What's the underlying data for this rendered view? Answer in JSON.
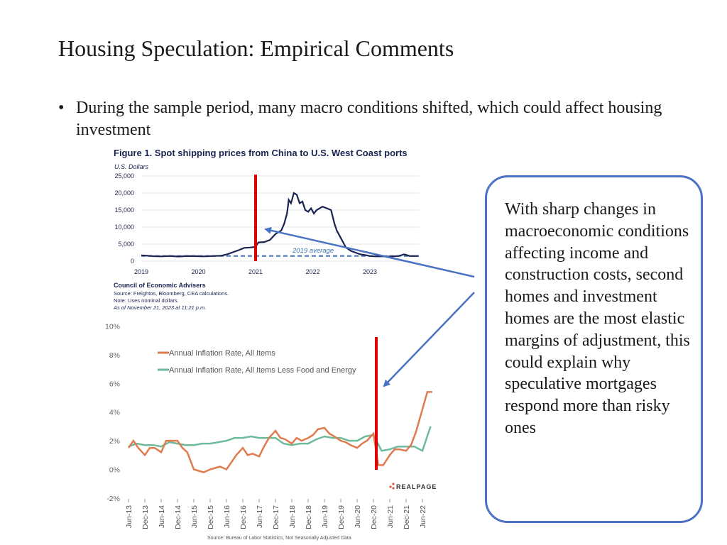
{
  "slide": {
    "title": "Housing Speculation: Empirical Comments",
    "bullet": "During the sample period, many macro conditions shifted, which could affect housing investment"
  },
  "callout": {
    "text": "With sharp changes in macroeconomic conditions affecting income and construction costs, second homes and investment homes are the most elastic margins of adjustment, this could explain why speculative mortgages respond more than risky ones"
  },
  "colors": {
    "shipping_line": "#1b2350",
    "average_line": "#3d73b0",
    "headline_inflation": "#e07b50",
    "core_inflation": "#6dbb9a",
    "marker": "#e00000",
    "arrow": "#4a72c4",
    "callout_border": "#4a72c4",
    "realpage_dots": "#e2573c"
  },
  "chart_data": [
    {
      "type": "line",
      "title": "Figure 1. Spot shipping prices from China to U.S. West Coast ports",
      "ylabel": "U.S. Dollars",
      "xlabel": "",
      "ylim": [
        0,
        25000
      ],
      "xlim": [
        2019,
        2024
      ],
      "yticks": [
        "0",
        "5,000",
        "10,000",
        "15,000",
        "20,000",
        "25,000"
      ],
      "xticks": [
        "2019",
        "2020",
        "2021",
        "2022",
        "2023"
      ],
      "grid": "horizontal",
      "annotation": "2019 average",
      "average_value": 1500,
      "footer": {
        "source_org": "Council of Economic Advisers",
        "source": "Source: Freightos, Bloomberg, CEA calculations.",
        "note": "Note: Uses nominal dollars.",
        "asof": "As of November 21, 2023 at 11:21 p.m."
      },
      "vertical_marker_x": 2021.0,
      "series": [
        {
          "x": [
            2019.0,
            2019.1,
            2019.2,
            2019.35,
            2019.5,
            2019.65,
            2019.8,
            2019.95,
            2020.1,
            2020.25,
            2020.4,
            2020.5,
            2020.6,
            2020.7,
            2020.8,
            2020.9,
            2021.0,
            2021.05,
            2021.15,
            2021.25,
            2021.35,
            2021.45,
            2021.5,
            2021.55,
            2021.58,
            2021.62,
            2021.67,
            2021.72,
            2021.77,
            2021.82,
            2021.87,
            2021.92,
            2021.97,
            2022.02,
            2022.07,
            2022.12,
            2022.17,
            2022.25,
            2022.32,
            2022.38,
            2022.42,
            2022.5,
            2022.58,
            2022.67,
            2022.75,
            2022.83,
            2022.92,
            2023.0,
            2023.1,
            2023.2,
            2023.35,
            2023.5,
            2023.6,
            2023.7,
            2023.85
          ],
          "values": [
            1700,
            1600,
            1450,
            1400,
            1500,
            1350,
            1500,
            1450,
            1400,
            1500,
            1600,
            2000,
            2600,
            3200,
            3900,
            4000,
            4200,
            5500,
            5600,
            6200,
            8000,
            9000,
            11000,
            14000,
            18000,
            17000,
            20000,
            19500,
            17000,
            17500,
            15000,
            14500,
            15500,
            14000,
            15000,
            15500,
            16000,
            15500,
            15000,
            11000,
            9000,
            6500,
            4000,
            3000,
            2500,
            2000,
            1800,
            1500,
            1400,
            1400,
            1350,
            1500,
            2000,
            1500,
            1500
          ]
        }
      ]
    },
    {
      "type": "line",
      "title": "",
      "xlabel": "",
      "ylabel": "",
      "ylim": [
        -2,
        10
      ],
      "yticks": [
        "-2%",
        "0%",
        "2%",
        "4%",
        "6%",
        "8%",
        "10%"
      ],
      "xticks": [
        "Jun-13",
        "Dec-13",
        "Jun-14",
        "Dec-14",
        "Jun-15",
        "Dec-15",
        "Jun-16",
        "Dec-16",
        "Jun-17",
        "Dec-17",
        "Jun-18",
        "Dec-18",
        "Jun-19",
        "Dec-19",
        "Jun-20",
        "Dec-20",
        "Jun-21",
        "Dec-21",
        "Jun-22"
      ],
      "source": "Source: Bureau of Labor Statistics, Not Seasonally Adjusted Data",
      "brand": "REALPAGE",
      "vertical_marker_x": 15.0,
      "series": [
        {
          "name": "Annual Inflation Rate, All Items",
          "x": [
            0,
            0.3,
            0.6,
            1,
            1.3,
            1.6,
            2,
            2.3,
            2.6,
            3,
            3.3,
            3.6,
            4,
            4.3,
            4.6,
            5,
            5.3,
            5.6,
            6,
            6.3,
            6.6,
            7,
            7.3,
            7.6,
            8,
            8.3,
            8.6,
            9,
            9.3,
            9.6,
            10,
            10.3,
            10.6,
            11,
            11.3,
            11.6,
            12,
            12.3,
            12.6,
            13,
            13.3,
            13.6,
            14,
            14.3,
            14.6,
            15,
            15.3,
            15.6,
            16,
            16.3,
            16.6,
            17,
            17.3,
            17.6,
            18,
            18.3,
            18.6
          ],
          "values": [
            1.5,
            2.0,
            1.5,
            1.0,
            1.5,
            1.5,
            1.2,
            2.0,
            2.0,
            2.0,
            1.5,
            1.2,
            0.0,
            -0.1,
            -0.2,
            0.0,
            0.1,
            0.2,
            0.0,
            0.5,
            1.0,
            1.5,
            1.0,
            1.1,
            0.9,
            1.6,
            2.2,
            2.7,
            2.2,
            2.1,
            1.8,
            2.2,
            2.0,
            2.2,
            2.4,
            2.8,
            2.9,
            2.5,
            2.3,
            2.0,
            1.9,
            1.7,
            1.5,
            1.8,
            2.0,
            2.5,
            0.3,
            0.3,
            1.0,
            1.4,
            1.4,
            1.3,
            1.7,
            2.6,
            4.2,
            5.4,
            5.4
          ]
        },
        {
          "name": "Annual Inflation Rate, All Items Less Food and Energy",
          "x": [
            0,
            0.5,
            1,
            1.5,
            2,
            2.5,
            3,
            3.5,
            4,
            4.5,
            5,
            5.5,
            6,
            6.5,
            7,
            7.5,
            8,
            8.5,
            9,
            9.5,
            10,
            10.5,
            11,
            11.5,
            12,
            12.5,
            13,
            13.5,
            14,
            14.5,
            15,
            15.5,
            16,
            16.5,
            17,
            17.5,
            18,
            18.5
          ],
          "values": [
            1.6,
            1.8,
            1.7,
            1.7,
            1.6,
            1.9,
            1.8,
            1.7,
            1.7,
            1.8,
            1.8,
            1.9,
            2.0,
            2.2,
            2.2,
            2.3,
            2.2,
            2.2,
            2.2,
            1.8,
            1.7,
            1.8,
            1.8,
            2.1,
            2.3,
            2.2,
            2.2,
            2.0,
            2.0,
            2.3,
            2.4,
            1.3,
            1.4,
            1.6,
            1.6,
            1.6,
            1.3,
            3.0
          ]
        }
      ]
    }
  ]
}
